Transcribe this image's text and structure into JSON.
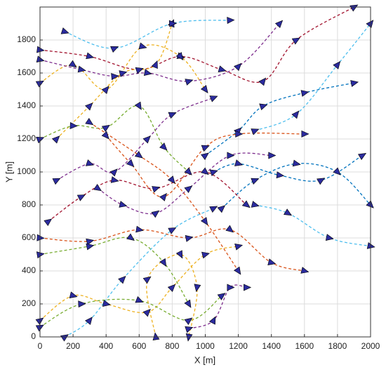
{
  "chart_data": {
    "type": "line",
    "x_label": "X [m]",
    "y_label": "Y [m]",
    "xlim": [
      0,
      2000
    ],
    "ylim": [
      0,
      2000
    ],
    "xticks": [
      0,
      200,
      400,
      600,
      800,
      1000,
      1200,
      1400,
      1600,
      1800,
      2000
    ],
    "yticks": [
      0,
      200,
      400,
      600,
      800,
      1000,
      1200,
      1400,
      1600,
      1800
    ],
    "grid": true,
    "marker_color": "#2b2b9e",
    "series": [
      {
        "color": "#a2142f",
        "x": [
          0,
          300,
          600,
          850,
          1100,
          1350,
          1550,
          1900
        ],
        "values": [
          1740,
          1700,
          1620,
          1700,
          1620,
          1550,
          1800,
          2000
        ]
      },
      {
        "color": "#edb120",
        "x": [
          0,
          200,
          400,
          620,
          850,
          1000
        ],
        "values": [
          1540,
          1650,
          1500,
          1760,
          1700,
          1500
        ]
      },
      {
        "color": "#7e2f8e",
        "x": [
          0,
          250,
          450,
          650,
          900,
          1200,
          1450
        ],
        "values": [
          1680,
          1620,
          1580,
          1600,
          1550,
          1640,
          1900
        ]
      },
      {
        "color": "#edb120",
        "x": [
          100,
          300,
          500,
          700,
          800
        ],
        "values": [
          1200,
          1400,
          1600,
          1650,
          1900
        ]
      },
      {
        "color": "#77ac30",
        "x": [
          0,
          200,
          400,
          600,
          750,
          900
        ],
        "values": [
          1200,
          1280,
          1270,
          1400,
          1150,
          1000
        ]
      },
      {
        "color": "#4dbeee",
        "x": [
          150,
          450,
          800,
          1150
        ],
        "values": [
          1850,
          1750,
          1900,
          1920
        ]
      },
      {
        "color": "#0072bd",
        "x": [
          1000,
          1200,
          1350,
          1600,
          1900
        ],
        "values": [
          1100,
          1250,
          1400,
          1480,
          1540
        ]
      },
      {
        "color": "#4dbeee",
        "x": [
          1300,
          1550,
          1800,
          2000
        ],
        "values": [
          1250,
          1350,
          1650,
          1900
        ]
      },
      {
        "color": "#0072bd",
        "x": [
          1100,
          1300,
          1550,
          1800,
          2000
        ],
        "values": [
          780,
          950,
          1050,
          1000,
          800
        ]
      },
      {
        "color": "#4dbeee",
        "x": [
          1300,
          1500,
          1750,
          2000
        ],
        "values": [
          800,
          750,
          600,
          550
        ]
      },
      {
        "color": "#d95319",
        "x": [
          0,
          300,
          600,
          900,
          1150,
          1400,
          1600
        ],
        "values": [
          600,
          580,
          650,
          600,
          650,
          450,
          400
        ]
      },
      {
        "color": "#edb120",
        "x": [
          0,
          200,
          400,
          650,
          800,
          1000,
          1200
        ],
        "values": [
          100,
          250,
          200,
          150,
          300,
          500,
          550
        ]
      },
      {
        "color": "#77ac30",
        "x": [
          0,
          250,
          600,
          900,
          1100
        ],
        "values": [
          60,
          200,
          220,
          100,
          250
        ]
      },
      {
        "color": "#7e2f8e",
        "x": [
          350,
          500,
          700,
          900,
          1150,
          1400
        ],
        "values": [
          900,
          800,
          750,
          900,
          1100,
          1100
        ]
      },
      {
        "color": "#d95319",
        "x": [
          300,
          600,
          800,
          1000,
          1200
        ],
        "values": [
          1300,
          1100,
          950,
          700,
          400
        ]
      },
      {
        "color": "#edb120",
        "x": [
          700,
          650,
          850,
          950,
          900
        ],
        "values": [
          0,
          350,
          500,
          300,
          0
        ]
      },
      {
        "color": "#77ac30",
        "x": [
          0,
          300,
          550,
          750,
          900
        ],
        "values": [
          500,
          550,
          600,
          450,
          200
        ]
      },
      {
        "color": "#4dbeee",
        "x": [
          150,
          300,
          500,
          800,
          1050
        ],
        "values": [
          0,
          100,
          350,
          650,
          780
        ]
      },
      {
        "color": "#7e2f8e",
        "x": [
          100,
          300,
          450,
          650,
          800,
          1050
        ],
        "values": [
          950,
          1050,
          1000,
          1200,
          1350,
          1450
        ]
      },
      {
        "color": "#0072bd",
        "x": [
          1050,
          1200,
          1450,
          1700,
          1950
        ],
        "values": [
          1000,
          1050,
          980,
          950,
          1100
        ]
      },
      {
        "color": "#d95319",
        "x": [
          400,
          550,
          750,
          1000,
          1200,
          1600
        ],
        "values": [
          1220,
          1050,
          850,
          1150,
          1230,
          1230
        ]
      },
      {
        "color": "#a2142f",
        "x": [
          50,
          250,
          450,
          700,
          1000,
          1250
        ],
        "values": [
          700,
          850,
          950,
          900,
          1000,
          800
        ]
      },
      {
        "color": "#7e2f8e",
        "x": [
          900,
          1050,
          1150,
          1250
        ],
        "values": [
          50,
          100,
          300,
          300
        ]
      }
    ]
  }
}
